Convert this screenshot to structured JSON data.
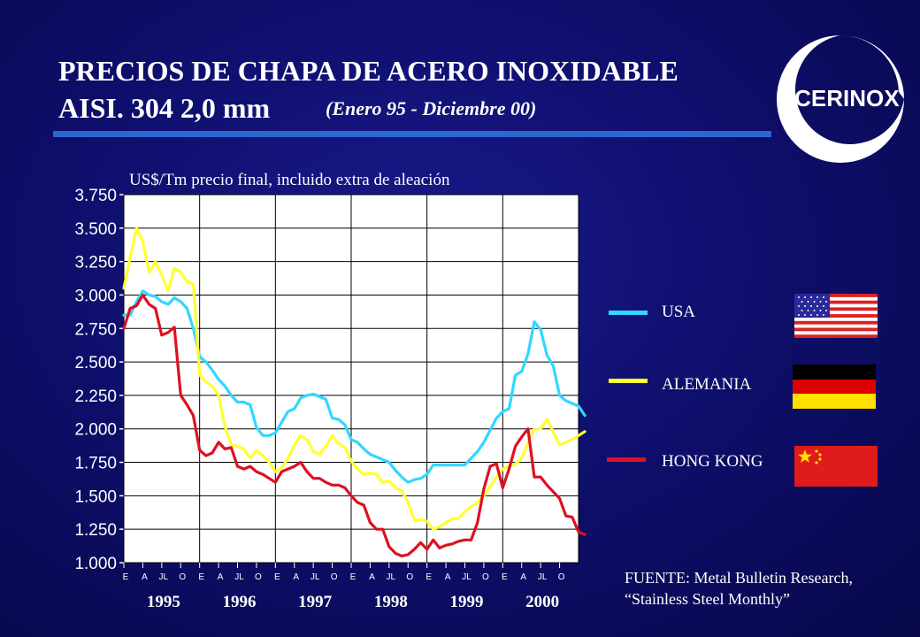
{
  "header": {
    "title_line1": "PRECIOS DE CHAPA DE ACERO INOXIDABLE",
    "title_line2": "AISI. 304 2,0 mm",
    "subtitle": "(Enero 95 - Diciembre 00)",
    "logo_text": "ACERINOX"
  },
  "colors": {
    "background": "#0f0f6e",
    "accent_line": "#2b67d0",
    "usa": "#33d6ff",
    "alemania": "#ffff33",
    "hong_kong": "#dd1122"
  },
  "legend": [
    {
      "label": "USA",
      "color": "#33d6ff",
      "flag": "usa-flag"
    },
    {
      "label": "ALEMANIA",
      "color": "#ffff33",
      "flag": "germany-flag"
    },
    {
      "label": "HONG KONG",
      "color": "#dd1122",
      "flag": "china-flag"
    }
  ],
  "source": {
    "line1": "FUENTE: Metal Bulletin Research,",
    "line2": "“Stainless Steel Monthly”"
  },
  "chart_data": {
    "type": "line",
    "ylabel": "US$/Tm precio final, incluido extra de aleación",
    "ylim": [
      1000,
      3750
    ],
    "yticks": [
      1000,
      1250,
      1500,
      1750,
      2000,
      2250,
      2500,
      2750,
      3000,
      3250,
      3500,
      3750
    ],
    "ytick_labels": [
      "1.000",
      "1.250",
      "1.500",
      "1.750",
      "2.000",
      "2.250",
      "2.500",
      "2.750",
      "3.000",
      "3.250",
      "3.500",
      "3.750"
    ],
    "month_tick_labels": [
      "E",
      "A",
      "JL",
      "O"
    ],
    "years": [
      "1995",
      "1996",
      "1997",
      "1998",
      "1999",
      "2000"
    ],
    "grid": true,
    "series": [
      {
        "name": "USA",
        "values": [
          2850,
          2850,
          2950,
          3030,
          3000,
          2990,
          2950,
          2930,
          2980,
          2950,
          2900,
          2750,
          2540,
          2500,
          2440,
          2370,
          2320,
          2250,
          2200,
          2200,
          2180,
          2010,
          1950,
          1950,
          1970,
          2050,
          2130,
          2150,
          2230,
          2250,
          2260,
          2240,
          2220,
          2080,
          2070,
          2030,
          1920,
          1900,
          1850,
          1810,
          1790,
          1770,
          1750,
          1690,
          1640,
          1600,
          1620,
          1630,
          1660,
          1730,
          1730,
          1730,
          1730,
          1730,
          1730,
          1780,
          1830,
          1900,
          1990,
          2080,
          2130,
          2150,
          2400,
          2430,
          2560,
          2800,
          2740,
          2550,
          2470,
          2250,
          2210,
          2190,
          2170,
          2100
        ]
      },
      {
        "name": "ALEMANIA",
        "values": [
          3050,
          3280,
          3500,
          3400,
          3170,
          3250,
          3150,
          3030,
          3200,
          3170,
          3100,
          3080,
          2400,
          2350,
          2320,
          2250,
          2020,
          1880,
          1870,
          1850,
          1780,
          1840,
          1800,
          1750,
          1680,
          1710,
          1780,
          1880,
          1950,
          1920,
          1830,
          1810,
          1870,
          1950,
          1890,
          1860,
          1760,
          1700,
          1660,
          1670,
          1660,
          1600,
          1610,
          1560,
          1540,
          1450,
          1320,
          1320,
          1310,
          1250,
          1270,
          1300,
          1330,
          1330,
          1380,
          1420,
          1450,
          1500,
          1570,
          1640,
          1700,
          1720,
          1740,
          1780,
          1900,
          2000,
          2000,
          2070,
          1980,
          1880,
          1900,
          1920,
          1950,
          1980
        ]
      },
      {
        "name": "HONG KONG",
        "values": [
          2750,
          2900,
          2920,
          3000,
          2930,
          2900,
          2700,
          2720,
          2760,
          2250,
          2180,
          2100,
          1840,
          1800,
          1820,
          1900,
          1850,
          1860,
          1720,
          1700,
          1720,
          1680,
          1660,
          1630,
          1600,
          1680,
          1700,
          1720,
          1750,
          1680,
          1630,
          1630,
          1600,
          1580,
          1580,
          1560,
          1500,
          1450,
          1430,
          1300,
          1250,
          1250,
          1120,
          1070,
          1050,
          1060,
          1100,
          1150,
          1100,
          1170,
          1110,
          1130,
          1140,
          1160,
          1170,
          1170,
          1300,
          1550,
          1720,
          1740,
          1560,
          1700,
          1870,
          1940,
          2000,
          1640,
          1640,
          1580,
          1530,
          1480,
          1350,
          1340,
          1230,
          1210
        ]
      }
    ]
  }
}
